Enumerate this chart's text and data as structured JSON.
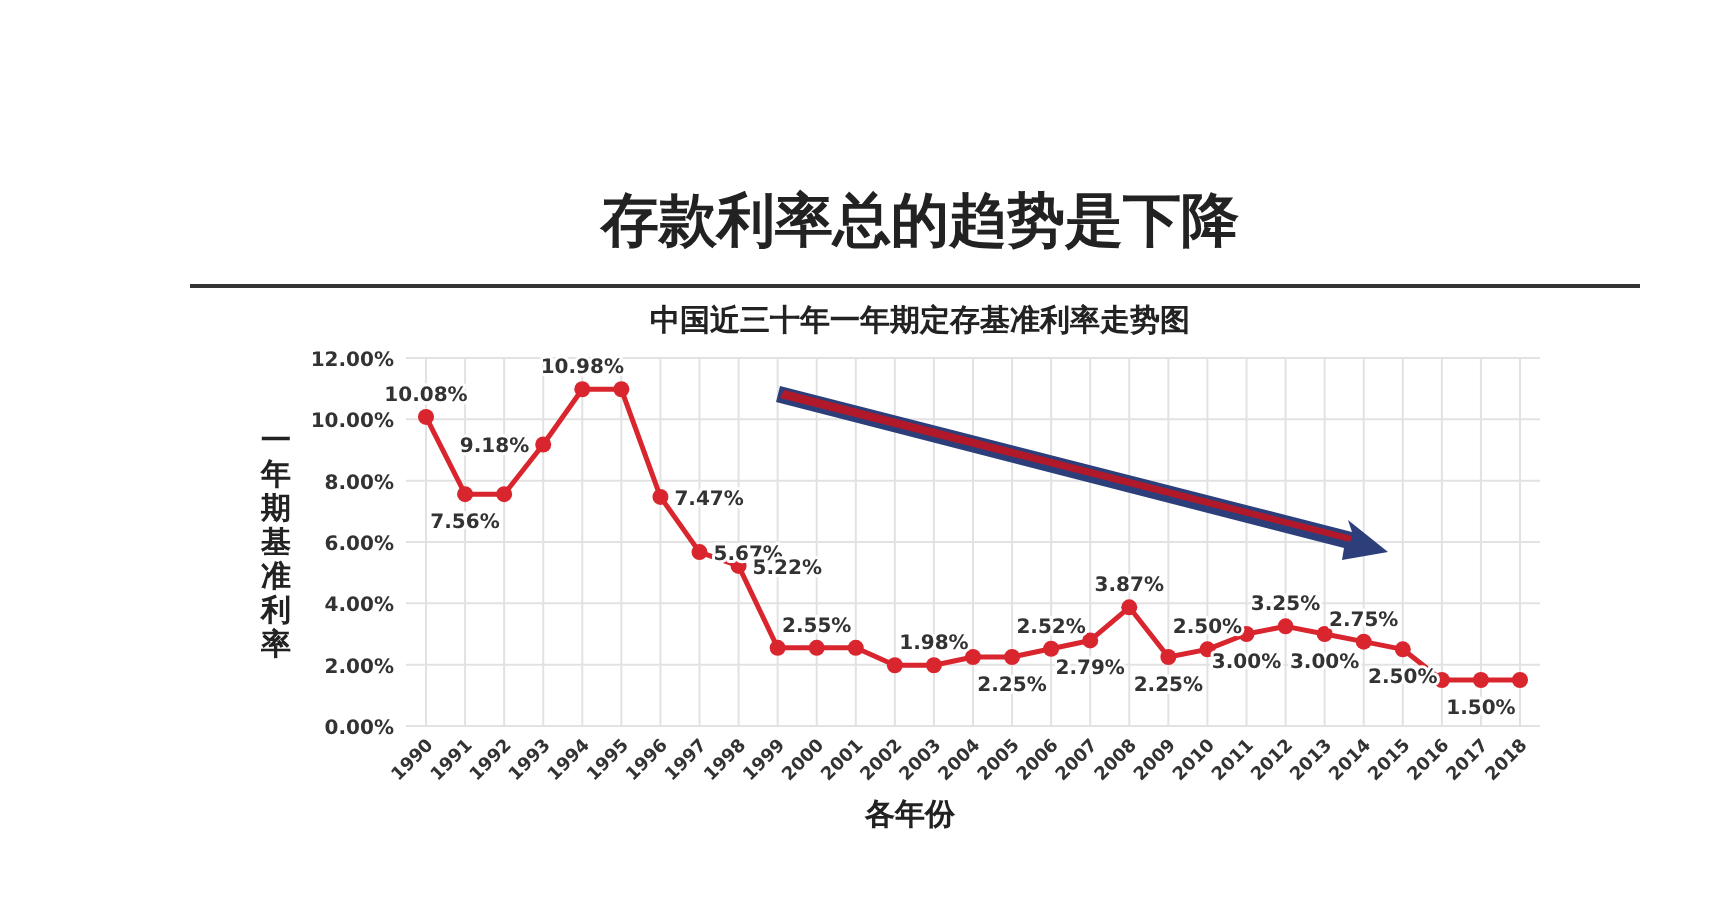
{
  "chart_data": {
    "type": "line",
    "title": "存款利率总的趋势是下降",
    "subtitle": "中国近三十年一年期定存基准利率走势图",
    "xlabel": "各年份",
    "ylabel": "一年期基准利率",
    "categories": [
      "1990",
      "1991",
      "1992",
      "1993",
      "1994",
      "1995",
      "1996",
      "1997",
      "1998",
      "1999",
      "2000",
      "2001",
      "2002",
      "2003",
      "2004",
      "2005",
      "2006",
      "2007",
      "2008",
      "2009",
      "2010",
      "2011",
      "2012",
      "2013",
      "2014",
      "2015",
      "2016",
      "2017",
      "2018"
    ],
    "series": [
      {
        "color": "#d9262e",
        "values": [
          10.08,
          7.56,
          7.56,
          9.18,
          10.98,
          10.98,
          7.47,
          5.67,
          5.22,
          2.55,
          2.55,
          2.55,
          1.98,
          1.98,
          2.25,
          2.25,
          2.52,
          2.79,
          3.87,
          2.25,
          2.5,
          3.0,
          3.25,
          3.0,
          2.75,
          2.5,
          1.5,
          1.5,
          1.5
        ],
        "value_labels": [
          "10.08%",
          "7.56%",
          null,
          "9.18%",
          "10.98%",
          null,
          "7.47%",
          "5.67%",
          "5.22%",
          null,
          "2.55%",
          null,
          null,
          "1.98%",
          null,
          "2.25%",
          "2.52%",
          "2.79%",
          "3.87%",
          "2.25%",
          "2.50%",
          "3.00%",
          "3.25%",
          "3.00%",
          "2.75%",
          "2.50%",
          null,
          "1.50%",
          null
        ]
      }
    ],
    "ylim": [
      0,
      12
    ],
    "yticks": [
      {
        "value": 0,
        "label": "0.00%"
      },
      {
        "value": 2,
        "label": "2.00%"
      },
      {
        "value": 4,
        "label": "4.00%"
      },
      {
        "value": 6,
        "label": "6.00%"
      },
      {
        "value": 8,
        "label": "8.00%"
      },
      {
        "value": 10,
        "label": "10.00%"
      },
      {
        "value": 12,
        "label": "12.00%"
      }
    ],
    "grid": true,
    "marker": "circle",
    "line_style": "solid"
  }
}
